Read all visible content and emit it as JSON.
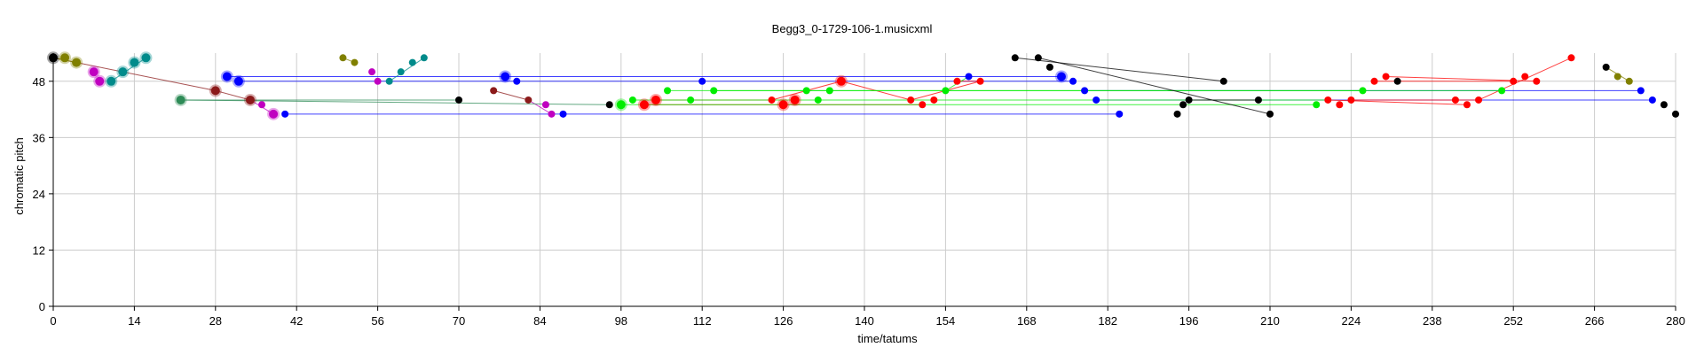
{
  "chart_data": {
    "type": "scatter",
    "title": "Begg3_0-1729-106-1.musicxml",
    "xlabel": "time/tatums",
    "ylabel": "chromatic pitch",
    "xlim": [
      0,
      280
    ],
    "ylim": [
      0,
      54
    ],
    "xticks": [
      0,
      14,
      28,
      42,
      56,
      70,
      84,
      98,
      112,
      126,
      140,
      154,
      168,
      182,
      196,
      210,
      224,
      238,
      252,
      266,
      280
    ],
    "yticks": [
      0,
      12,
      24,
      36,
      48
    ],
    "grid": true,
    "series": [
      {
        "color": "#0000ff",
        "points": [
          [
            30,
            49,
            1
          ],
          [
            32,
            48,
            1
          ],
          [
            40,
            41,
            0
          ],
          [
            78,
            49,
            1
          ],
          [
            80,
            48,
            0
          ],
          [
            88,
            41,
            0
          ],
          [
            112,
            48,
            0
          ],
          [
            158,
            49,
            0
          ],
          [
            174,
            49,
            1
          ],
          [
            176,
            48,
            0
          ],
          [
            178,
            46,
            0
          ],
          [
            180,
            44,
            0
          ],
          [
            184,
            41,
            0
          ],
          [
            274,
            46,
            0
          ],
          [
            276,
            44,
            0
          ]
        ],
        "lines": [
          [
            30,
            49,
            174,
            49
          ],
          [
            32,
            48,
            176,
            48
          ],
          [
            40,
            41,
            184,
            41
          ],
          [
            178,
            46,
            274,
            46
          ],
          [
            180,
            44,
            276,
            44
          ]
        ]
      },
      {
        "color": "#ff0000",
        "points": [
          [
            102,
            43,
            1
          ],
          [
            104,
            44,
            1
          ],
          [
            124,
            44,
            0
          ],
          [
            126,
            43,
            1
          ],
          [
            128,
            44,
            1
          ],
          [
            136,
            48,
            1
          ],
          [
            148,
            44,
            0
          ],
          [
            150,
            43,
            0
          ],
          [
            152,
            44,
            0
          ],
          [
            156,
            48,
            0
          ],
          [
            160,
            48,
            0
          ],
          [
            220,
            44,
            0
          ],
          [
            222,
            43,
            0
          ],
          [
            224,
            44,
            0
          ],
          [
            228,
            48,
            0
          ],
          [
            230,
            49,
            0
          ],
          [
            242,
            44,
            0
          ],
          [
            244,
            43,
            0
          ],
          [
            246,
            44,
            0
          ],
          [
            252,
            48,
            0
          ],
          [
            254,
            49,
            0
          ],
          [
            256,
            48,
            0
          ],
          [
            262,
            53,
            0
          ]
        ],
        "lines": [
          [
            102,
            43,
            126,
            43
          ],
          [
            104,
            44,
            124,
            44
          ],
          [
            124,
            44,
            136,
            48
          ],
          [
            136,
            48,
            148,
            44
          ],
          [
            148,
            44,
            160,
            48
          ],
          [
            126,
            43,
            150,
            43
          ],
          [
            220,
            44,
            244,
            43
          ],
          [
            224,
            44,
            246,
            44
          ],
          [
            228,
            48,
            252,
            48
          ],
          [
            230,
            49,
            256,
            48
          ],
          [
            246,
            44,
            262,
            53
          ],
          [
            156,
            48,
            160,
            48
          ]
        ]
      },
      {
        "color": "#00ee00",
        "points": [
          [
            98,
            43,
            1
          ],
          [
            100,
            44,
            0
          ],
          [
            106,
            46,
            0
          ],
          [
            110,
            44,
            0
          ],
          [
            114,
            46,
            0
          ],
          [
            130,
            46,
            0
          ],
          [
            132,
            44,
            0
          ],
          [
            134,
            46,
            0
          ],
          [
            154,
            46,
            0
          ],
          [
            218,
            43,
            0
          ],
          [
            226,
            46,
            0
          ],
          [
            250,
            46,
            0
          ]
        ],
        "lines": [
          [
            98,
            43,
            218,
            43
          ],
          [
            100,
            44,
            220,
            44
          ],
          [
            106,
            46,
            226,
            46
          ],
          [
            114,
            46,
            250,
            46
          ],
          [
            154,
            46,
            158,
            49
          ]
        ]
      },
      {
        "color": "#000000",
        "points": [
          [
            0,
            53,
            1
          ],
          [
            70,
            44,
            0
          ],
          [
            96,
            43,
            0
          ],
          [
            166,
            53,
            0
          ],
          [
            170,
            53,
            0
          ],
          [
            172,
            51,
            0
          ],
          [
            194,
            41,
            0
          ],
          [
            195,
            43,
            0
          ],
          [
            196,
            44,
            0
          ],
          [
            202,
            48,
            0
          ],
          [
            208,
            44,
            0
          ],
          [
            210,
            41,
            0
          ],
          [
            232,
            48,
            0
          ],
          [
            268,
            51,
            0
          ],
          [
            278,
            43,
            0
          ],
          [
            280,
            41,
            0
          ]
        ],
        "lines": [
          [
            166,
            53,
            202,
            48
          ],
          [
            170,
            53,
            210,
            41
          ],
          [
            196,
            44,
            208,
            44
          ]
        ]
      },
      {
        "color": "#8b1a1a",
        "points": [
          [
            28,
            46,
            1
          ],
          [
            34,
            44,
            1
          ],
          [
            76,
            46,
            0
          ],
          [
            82,
            44,
            0
          ]
        ],
        "lines": [
          [
            0,
            53,
            28,
            46
          ],
          [
            28,
            46,
            34,
            44
          ],
          [
            76,
            46,
            82,
            44
          ]
        ]
      },
      {
        "color": "#c000c0",
        "points": [
          [
            7,
            50,
            1
          ],
          [
            8,
            48,
            1
          ],
          [
            36,
            43,
            0
          ],
          [
            38,
            41,
            1
          ],
          [
            55,
            50,
            0
          ],
          [
            56,
            48,
            0
          ],
          [
            85,
            43,
            0
          ],
          [
            86,
            41,
            0
          ]
        ],
        "lines": [
          [
            34,
            44,
            38,
            41
          ],
          [
            82,
            44,
            86,
            41
          ]
        ]
      },
      {
        "color": "#808000",
        "points": [
          [
            2,
            53,
            1
          ],
          [
            4,
            52,
            1
          ],
          [
            50,
            53,
            0
          ],
          [
            52,
            52,
            0
          ],
          [
            270,
            49,
            0
          ],
          [
            272,
            48,
            0
          ]
        ],
        "lines": [
          [
            0,
            53,
            4,
            52
          ],
          [
            50,
            53,
            52,
            52
          ],
          [
            268,
            51,
            272,
            48
          ]
        ]
      },
      {
        "color": "#008b8b",
        "points": [
          [
            10,
            48,
            1
          ],
          [
            12,
            50,
            1
          ],
          [
            14,
            52,
            1
          ],
          [
            16,
            53,
            1
          ],
          [
            58,
            48,
            0
          ],
          [
            60,
            50,
            0
          ],
          [
            62,
            52,
            0
          ],
          [
            64,
            53,
            0
          ]
        ],
        "lines": [
          [
            10,
            48,
            16,
            53
          ],
          [
            58,
            48,
            64,
            53
          ]
        ]
      },
      {
        "color": "#2e8b57",
        "points": [
          [
            22,
            44,
            1
          ]
        ],
        "lines": [
          [
            22,
            44,
            70,
            44
          ],
          [
            22,
            44,
            96,
            43
          ]
        ]
      }
    ]
  }
}
